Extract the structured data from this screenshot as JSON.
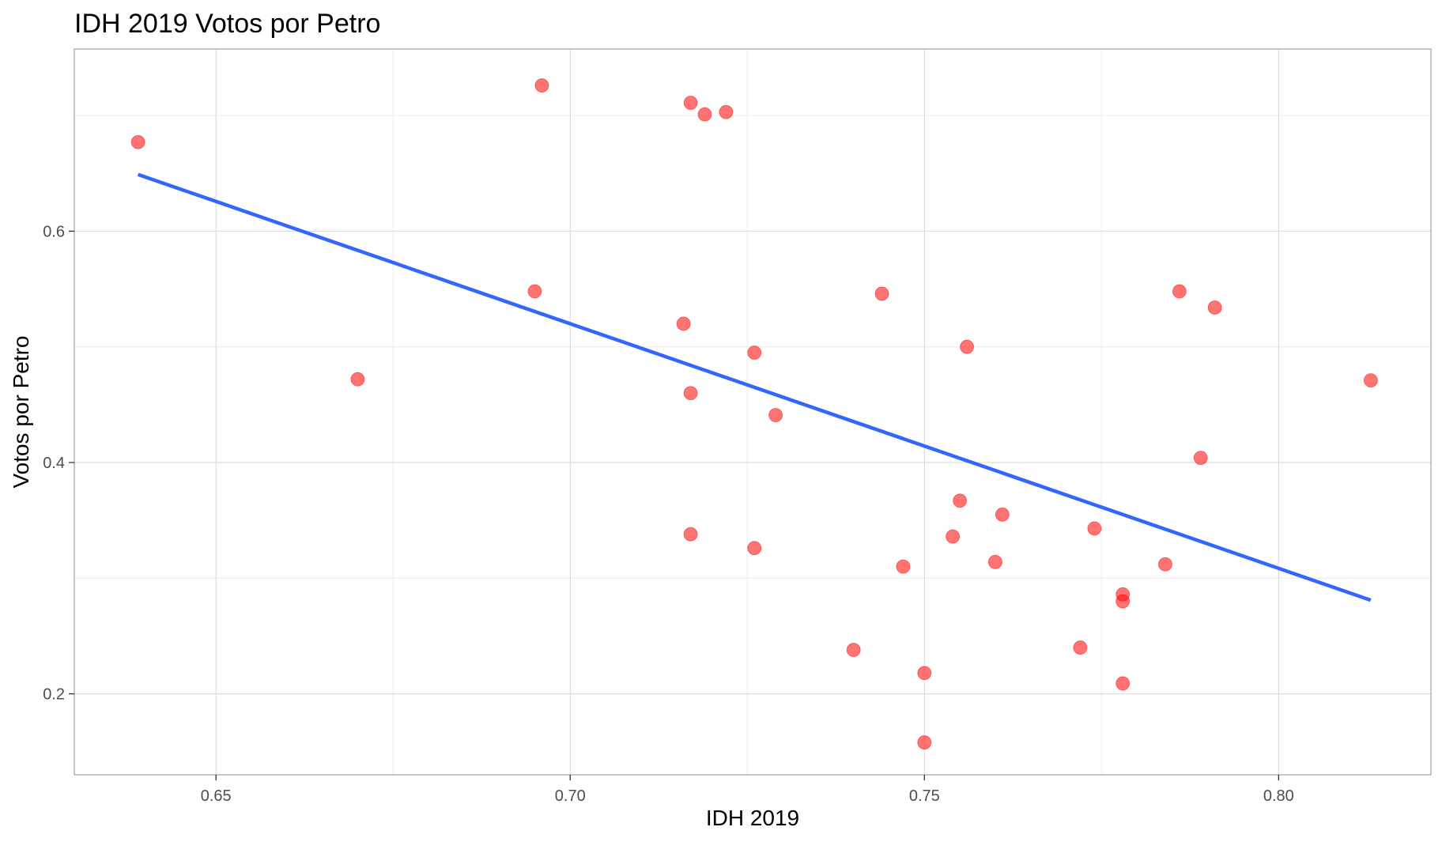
{
  "chart_data": {
    "type": "scatter",
    "title": "IDH 2019  Votos por Petro",
    "xlabel": "IDH 2019",
    "ylabel": "Votos por Petro",
    "xlim": [
      0.63,
      0.8215
    ],
    "ylim": [
      0.13,
      0.7575
    ],
    "x_ticks": [
      0.65,
      0.7,
      0.75,
      0.8
    ],
    "x_tick_labels": [
      "0.65",
      "0.70",
      "0.75",
      "0.80"
    ],
    "y_ticks": [
      0.2,
      0.4,
      0.6
    ],
    "y_tick_labels": [
      "0.2",
      "0.4",
      "0.6"
    ],
    "x_minor_ticks": [
      0.675,
      0.725,
      0.775
    ],
    "y_minor_ticks": [
      0.3,
      0.5,
      0.7
    ],
    "grid": true,
    "legend": "none",
    "point_color": "#ff0000",
    "point_opacity": 0.55,
    "line_color": "#3366ff",
    "trend_line": {
      "type": "linear fit",
      "x": [
        0.639,
        0.813
      ],
      "y": [
        0.649,
        0.281
      ]
    },
    "points": [
      {
        "x": 0.639,
        "y": 0.677
      },
      {
        "x": 0.67,
        "y": 0.472
      },
      {
        "x": 0.695,
        "y": 0.548
      },
      {
        "x": 0.696,
        "y": 0.726
      },
      {
        "x": 0.716,
        "y": 0.52
      },
      {
        "x": 0.717,
        "y": 0.711
      },
      {
        "x": 0.717,
        "y": 0.46
      },
      {
        "x": 0.717,
        "y": 0.338
      },
      {
        "x": 0.719,
        "y": 0.701
      },
      {
        "x": 0.722,
        "y": 0.703
      },
      {
        "x": 0.726,
        "y": 0.495
      },
      {
        "x": 0.726,
        "y": 0.326
      },
      {
        "x": 0.729,
        "y": 0.441
      },
      {
        "x": 0.74,
        "y": 0.238
      },
      {
        "x": 0.744,
        "y": 0.546
      },
      {
        "x": 0.747,
        "y": 0.31
      },
      {
        "x": 0.75,
        "y": 0.218
      },
      {
        "x": 0.75,
        "y": 0.158
      },
      {
        "x": 0.754,
        "y": 0.336
      },
      {
        "x": 0.755,
        "y": 0.367
      },
      {
        "x": 0.756,
        "y": 0.5
      },
      {
        "x": 0.76,
        "y": 0.314
      },
      {
        "x": 0.761,
        "y": 0.355
      },
      {
        "x": 0.772,
        "y": 0.24
      },
      {
        "x": 0.774,
        "y": 0.343
      },
      {
        "x": 0.778,
        "y": 0.286
      },
      {
        "x": 0.778,
        "y": 0.28
      },
      {
        "x": 0.778,
        "y": 0.209
      },
      {
        "x": 0.784,
        "y": 0.312
      },
      {
        "x": 0.786,
        "y": 0.548
      },
      {
        "x": 0.789,
        "y": 0.404
      },
      {
        "x": 0.791,
        "y": 0.534
      },
      {
        "x": 0.813,
        "y": 0.471
      }
    ]
  }
}
